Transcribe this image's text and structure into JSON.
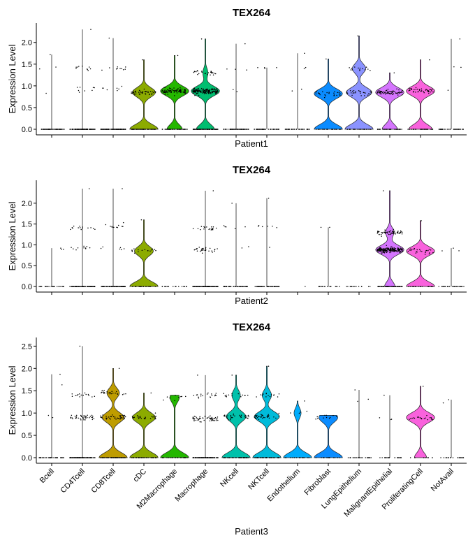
{
  "chart_data": {
    "type": "violin",
    "categories": [
      "Bcell",
      "CD4Tcell",
      "CD8Tcell",
      "cDC",
      "M2Macrophage",
      "Macrophage",
      "NKcell",
      "NKTcell",
      "Endothelium",
      "Fibroblast",
      "LungEpithelium",
      "MalignantEpithelial",
      "ProliferatingCell",
      "NotAvail"
    ],
    "colors": [
      "#F8766D",
      "#E18A00",
      "#BE9C00",
      "#8CAB00",
      "#24B700",
      "#00BE70",
      "#00C1AB",
      "#00BBDA",
      "#00ACFC",
      "#0B8CFF",
      "#8B93FF",
      "#D575FE",
      "#F962DD",
      "#FF65AC"
    ],
    "ylabel": "Expression Level",
    "panels": [
      {
        "title": "TEX264",
        "xlabel": "Patient1",
        "ylim": [
          0,
          2.35
        ],
        "yticks": [
          "0.0",
          "0.5",
          "1.0",
          "1.5",
          "2.0"
        ],
        "show_category_labels": false,
        "violins": [
          {
            "category": "Bcell",
            "max": 1.72,
            "n_cells": 60,
            "modes": [
              [
                0,
                0.95
              ],
              [
                1.4,
                0.03
              ],
              [
                0.85,
                0.02
              ]
            ],
            "filled": false
          },
          {
            "category": "CD4Tcell",
            "max": 2.3,
            "n_cells": 120,
            "modes": [
              [
                0,
                0.85
              ],
              [
                1.4,
                0.08
              ],
              [
                0.92,
                0.07
              ]
            ],
            "filled": false
          },
          {
            "category": "CD8Tcell",
            "max": 2.1,
            "n_cells": 110,
            "modes": [
              [
                0,
                0.85
              ],
              [
                1.4,
                0.09
              ],
              [
                0.92,
                0.06
              ]
            ],
            "filled": false
          },
          {
            "category": "cDC",
            "max": 1.6,
            "n_cells": 90,
            "modes": [
              [
                0,
                0.55
              ],
              [
                0.85,
                0.45
              ]
            ],
            "filled": true
          },
          {
            "category": "M2Macrophage",
            "max": 1.7,
            "n_cells": 120,
            "modes": [
              [
                0,
                0.35
              ],
              [
                0.88,
                0.65
              ]
            ],
            "filled": true
          },
          {
            "category": "Macrophage",
            "max": 2.08,
            "n_cells": 260,
            "modes": [
              [
                0,
                0.35
              ],
              [
                0.88,
                0.55
              ],
              [
                1.3,
                0.1
              ]
            ],
            "filled": true
          },
          {
            "category": "NKcell",
            "max": 1.97,
            "n_cells": 60,
            "modes": [
              [
                0,
                0.92
              ],
              [
                1.4,
                0.05
              ],
              [
                0.9,
                0.03
              ]
            ],
            "filled": false
          },
          {
            "category": "NKTcell",
            "max": 1.42,
            "n_cells": 50,
            "modes": [
              [
                0,
                0.94
              ],
              [
                1.4,
                0.06
              ]
            ],
            "filled": false
          },
          {
            "category": "Endothelium",
            "max": 1.75,
            "n_cells": 40,
            "modes": [
              [
                0,
                0.9
              ],
              [
                1.4,
                0.05
              ],
              [
                0.9,
                0.05
              ]
            ],
            "filled": false
          },
          {
            "category": "Fibroblast",
            "max": 1.62,
            "n_cells": 50,
            "modes": [
              [
                0,
                0.5
              ],
              [
                0.82,
                0.5
              ]
            ],
            "filled": true
          },
          {
            "category": "LungEpithelium",
            "max": 2.15,
            "n_cells": 70,
            "modes": [
              [
                0,
                0.42
              ],
              [
                0.85,
                0.38
              ],
              [
                1.4,
                0.2
              ]
            ],
            "filled": true
          },
          {
            "category": "MalignantEpithelial",
            "max": 1.3,
            "n_cells": 110,
            "modes": [
              [
                0,
                0.35
              ],
              [
                0.85,
                0.65
              ]
            ],
            "filled": true
          },
          {
            "category": "ProliferatingCell",
            "max": 1.6,
            "n_cells": 70,
            "modes": [
              [
                0,
                0.45
              ],
              [
                0.88,
                0.55
              ]
            ],
            "filled": true
          },
          {
            "category": "NotAvail",
            "max": 2.08,
            "n_cells": 40,
            "modes": [
              [
                0,
                0.93
              ],
              [
                1.45,
                0.04
              ],
              [
                0.9,
                0.03
              ]
            ],
            "filled": false
          }
        ]
      },
      {
        "title": "TEX264",
        "xlabel": "Patient2",
        "ylim": [
          0,
          2.45
        ],
        "yticks": [
          "0.0",
          "0.5",
          "1.0",
          "1.5",
          "2.0"
        ],
        "show_category_labels": false,
        "violins": [
          {
            "category": "Bcell",
            "max": 0.92,
            "n_cells": 30,
            "modes": [
              [
                0,
                0.95
              ],
              [
                0.85,
                0.05
              ]
            ],
            "filled": false
          },
          {
            "category": "CD4Tcell",
            "max": 2.35,
            "n_cells": 120,
            "modes": [
              [
                0,
                0.8
              ],
              [
                1.4,
                0.12
              ],
              [
                0.92,
                0.08
              ]
            ],
            "filled": false
          },
          {
            "category": "CD8Tcell",
            "max": 2.35,
            "n_cells": 110,
            "modes": [
              [
                0,
                0.85
              ],
              [
                1.45,
                0.1
              ],
              [
                0.92,
                0.05
              ]
            ],
            "filled": false
          },
          {
            "category": "cDC",
            "max": 1.6,
            "n_cells": 40,
            "modes": [
              [
                0,
                0.6
              ],
              [
                0.85,
                0.4
              ]
            ],
            "filled": true
          },
          {
            "category": "M2Macrophage",
            "max": 0,
            "n_cells": 20,
            "modes": [
              [
                0,
                1
              ]
            ],
            "filled": false
          },
          {
            "category": "Macrophage",
            "max": 2.3,
            "n_cells": 160,
            "modes": [
              [
                0,
                0.7
              ],
              [
                0.88,
                0.18
              ],
              [
                1.4,
                0.12
              ]
            ],
            "filled": false
          },
          {
            "category": "NKcell",
            "max": 2.0,
            "n_cells": 60,
            "modes": [
              [
                0,
                0.88
              ],
              [
                1.42,
                0.08
              ],
              [
                0.92,
                0.04
              ]
            ],
            "filled": false
          },
          {
            "category": "NKTcell",
            "max": 2.12,
            "n_cells": 60,
            "modes": [
              [
                0,
                0.88
              ],
              [
                1.42,
                0.1
              ],
              [
                0.9,
                0.02
              ]
            ],
            "filled": false
          },
          {
            "category": "Endothelium",
            "max": 0,
            "n_cells": 1,
            "modes": [
              [
                0,
                1
              ]
            ],
            "filled": false
          },
          {
            "category": "Fibroblast",
            "max": 1.42,
            "n_cells": 20,
            "modes": [
              [
                0,
                0.95
              ],
              [
                1.4,
                0.05
              ]
            ],
            "filled": false
          },
          {
            "category": "LungEpithelium",
            "max": 0,
            "n_cells": 15,
            "modes": [
              [
                0,
                1
              ]
            ],
            "filled": false
          },
          {
            "category": "MalignantEpithelial",
            "max": 2.3,
            "n_cells": 340,
            "modes": [
              [
                0,
                0.22
              ],
              [
                0.88,
                0.6
              ],
              [
                1.3,
                0.18
              ]
            ],
            "filled": true
          },
          {
            "category": "ProliferatingCell",
            "max": 1.58,
            "n_cells": 50,
            "modes": [
              [
                0,
                0.5
              ],
              [
                0.85,
                0.5
              ]
            ],
            "filled": true
          },
          {
            "category": "NotAvail",
            "max": 0.92,
            "n_cells": 30,
            "modes": [
              [
                0,
                0.95
              ],
              [
                0.85,
                0.05
              ]
            ],
            "filled": false
          }
        ]
      },
      {
        "title": "TEX264",
        "xlabel": "Patient3",
        "ylim": [
          0,
          2.6
        ],
        "yticks": [
          "0.0",
          "0.5",
          "1.0",
          "1.5",
          "2.0",
          "2.5"
        ],
        "show_category_labels": true,
        "violins": [
          {
            "category": "Bcell",
            "max": 1.87,
            "n_cells": 40,
            "modes": [
              [
                0,
                0.92
              ],
              [
                0.9,
                0.06
              ],
              [
                1.6,
                0.02
              ]
            ],
            "filled": false
          },
          {
            "category": "CD4Tcell",
            "max": 2.5,
            "n_cells": 150,
            "modes": [
              [
                0,
                0.65
              ],
              [
                0.9,
                0.25
              ],
              [
                1.4,
                0.1
              ]
            ],
            "filled": false
          },
          {
            "category": "CD8Tcell",
            "max": 2.0,
            "n_cells": 120,
            "modes": [
              [
                0,
                0.45
              ],
              [
                0.9,
                0.35
              ],
              [
                1.45,
                0.2
              ]
            ],
            "filled": true
          },
          {
            "category": "cDC",
            "max": 1.45,
            "n_cells": 60,
            "modes": [
              [
                0,
                0.55
              ],
              [
                0.9,
                0.45
              ]
            ],
            "filled": true
          },
          {
            "category": "M2Macrophage",
            "max": 1.4,
            "n_cells": 30,
            "modes": [
              [
                0,
                0.75
              ],
              [
                1.35,
                0.25
              ]
            ],
            "filled": true
          },
          {
            "category": "Macrophage",
            "max": 1.85,
            "n_cells": 180,
            "modes": [
              [
                0,
                0.6
              ],
              [
                0.88,
                0.3
              ],
              [
                1.4,
                0.1
              ]
            ],
            "filled": false
          },
          {
            "category": "NKcell",
            "max": 1.85,
            "n_cells": 90,
            "modes": [
              [
                0,
                0.5
              ],
              [
                0.92,
                0.35
              ],
              [
                1.4,
                0.15
              ]
            ],
            "filled": true
          },
          {
            "category": "NKTcell",
            "max": 2.05,
            "n_cells": 90,
            "modes": [
              [
                0,
                0.45
              ],
              [
                0.92,
                0.4
              ],
              [
                1.4,
                0.15
              ]
            ],
            "filled": true
          },
          {
            "category": "Endothelium",
            "max": 1.27,
            "n_cells": 20,
            "modes": [
              [
                0,
                0.8
              ],
              [
                1.0,
                0.2
              ]
            ],
            "filled": true
          },
          {
            "category": "Fibroblast",
            "max": 0.95,
            "n_cells": 25,
            "modes": [
              [
                0,
                0.6
              ],
              [
                0.9,
                0.4
              ]
            ],
            "filled": true
          },
          {
            "category": "LungEpithelium",
            "max": 1.52,
            "n_cells": 25,
            "modes": [
              [
                0,
                0.92
              ],
              [
                1.3,
                0.08
              ]
            ],
            "filled": false
          },
          {
            "category": "MalignantEpithelial",
            "max": 1.4,
            "n_cells": 25,
            "modes": [
              [
                0,
                0.9
              ],
              [
                0.85,
                0.1
              ]
            ],
            "filled": false
          },
          {
            "category": "ProliferatingCell",
            "max": 1.6,
            "n_cells": 30,
            "modes": [
              [
                0,
                0.3
              ],
              [
                0.9,
                0.7
              ]
            ],
            "filled": true
          },
          {
            "category": "NotAvail",
            "max": 1.3,
            "n_cells": 20,
            "modes": [
              [
                0,
                0.95
              ],
              [
                1.28,
                0.05
              ]
            ],
            "filled": false
          }
        ]
      }
    ]
  }
}
